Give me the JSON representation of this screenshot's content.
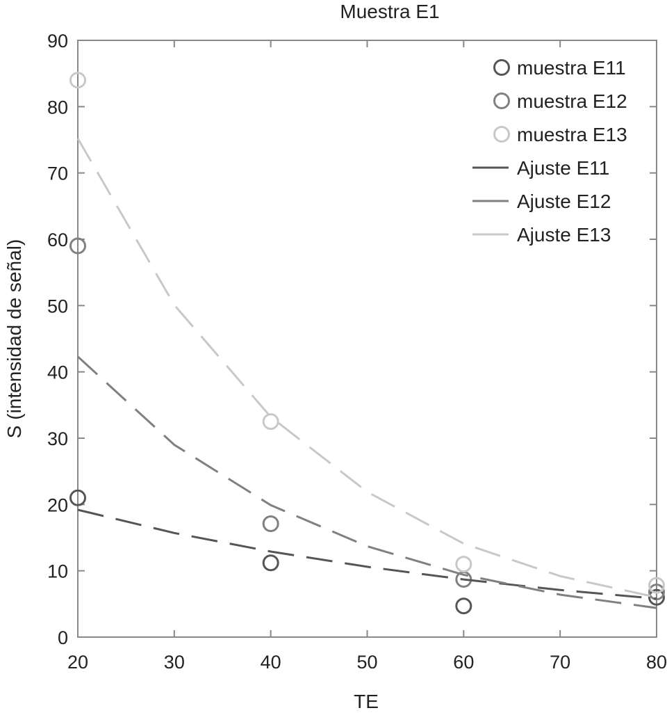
{
  "chart_data": {
    "type": "scatter",
    "title": "Muestra E1",
    "xlabel": "TE",
    "ylabel": "S (intensidad de señal)",
    "xlim": [
      20,
      80
    ],
    "ylim": [
      0,
      90
    ],
    "xticks": [
      "20",
      "30",
      "40",
      "50",
      "60",
      "70",
      "80"
    ],
    "yticks": [
      "0",
      "10",
      "20",
      "30",
      "40",
      "50",
      "60",
      "70",
      "80",
      "90"
    ],
    "grid": false,
    "legend_position": "top-right",
    "series": [
      {
        "name": "muestra E11",
        "kind": "markers",
        "color": "#555555",
        "x": [
          20,
          40,
          60,
          80
        ],
        "y": [
          21,
          11.2,
          4.7,
          6.0
        ]
      },
      {
        "name": "muestra E12",
        "kind": "markers",
        "color": "#808080",
        "x": [
          20,
          40,
          60,
          80
        ],
        "y": [
          59,
          17.1,
          8.7,
          6.8
        ]
      },
      {
        "name": "muestra E13",
        "kind": "markers",
        "color": "#c8c8c8",
        "x": [
          20,
          40,
          60,
          80
        ],
        "y": [
          84,
          32.5,
          11.0,
          7.8
        ]
      },
      {
        "name": "Ajuste E11",
        "kind": "dashed-line",
        "color": "#555555",
        "x": [
          20,
          30,
          40,
          50,
          60,
          70,
          80
        ],
        "y": [
          19.2,
          15.7,
          12.9,
          10.6,
          8.7,
          7.1,
          5.8
        ]
      },
      {
        "name": "Ajuste E12",
        "kind": "dashed-line",
        "color": "#808080",
        "x": [
          20,
          30,
          40,
          50,
          60,
          70,
          80
        ],
        "y": [
          42.3,
          29.0,
          19.9,
          13.7,
          9.4,
          6.4,
          4.4
        ]
      },
      {
        "name": "Ajuste E13",
        "kind": "dashed-line",
        "color": "#c8c8c8",
        "x": [
          20,
          30,
          40,
          50,
          60,
          70,
          80
        ],
        "y": [
          75.2,
          50.1,
          33.2,
          21.9,
          14.1,
          9.2,
          6.0
        ]
      }
    ]
  }
}
